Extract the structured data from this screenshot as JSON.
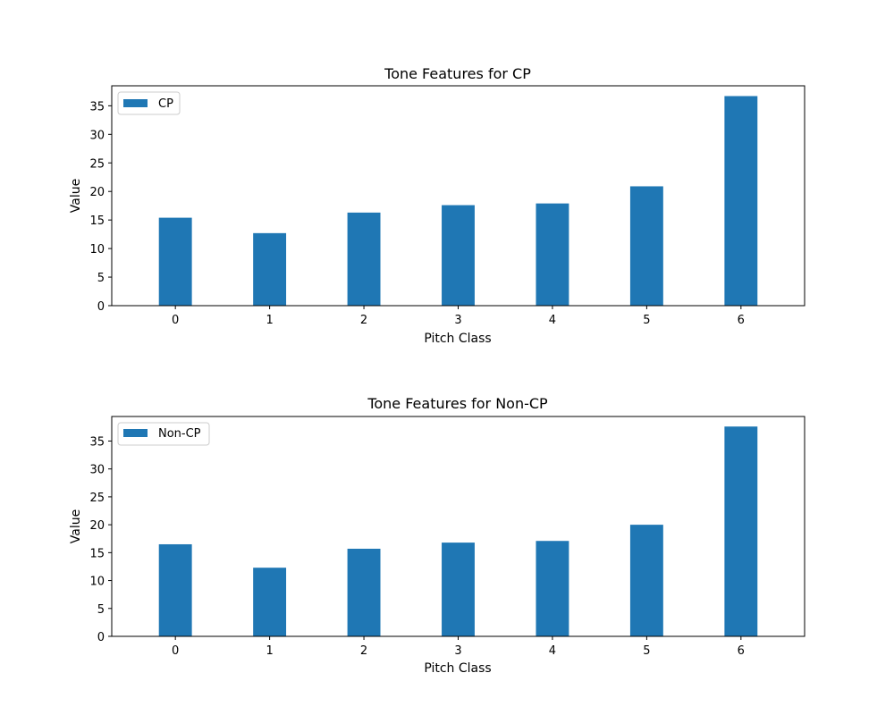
{
  "chart_data": [
    {
      "type": "bar",
      "title": "Tone Features for CP",
      "xlabel": "Pitch Class",
      "ylabel": "Value",
      "categories": [
        "0",
        "1",
        "2",
        "3",
        "4",
        "5",
        "6"
      ],
      "series": [
        {
          "name": "CP",
          "color": "#1f77b4",
          "values": [
            15.4,
            12.7,
            16.3,
            17.6,
            17.9,
            20.9,
            36.7
          ]
        }
      ],
      "ylim": [
        0,
        38.5
      ],
      "yticks": [
        0,
        5,
        10,
        15,
        20,
        25,
        30,
        35
      ],
      "grid": false,
      "legend": "upper-left"
    },
    {
      "type": "bar",
      "title": "Tone Features for Non-CP",
      "xlabel": "Pitch Class",
      "ylabel": "Value",
      "categories": [
        "0",
        "1",
        "2",
        "3",
        "4",
        "5",
        "6"
      ],
      "series": [
        {
          "name": "Non-CP",
          "color": "#1f77b4",
          "values": [
            16.5,
            12.3,
            15.7,
            16.8,
            17.1,
            20.0,
            37.6
          ]
        }
      ],
      "ylim": [
        0,
        39.4
      ],
      "yticks": [
        0,
        5,
        10,
        15,
        20,
        25,
        30,
        35
      ],
      "grid": false,
      "legend": "upper-left"
    }
  ]
}
